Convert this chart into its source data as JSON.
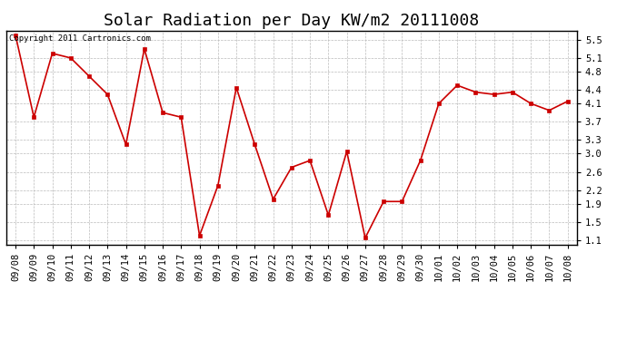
{
  "title": "Solar Radiation per Day KW/m2 20111008",
  "copyright_text": "Copyright 2011 Cartronics.com",
  "dates": [
    "09/08",
    "09/09",
    "09/10",
    "09/11",
    "09/12",
    "09/13",
    "09/14",
    "09/15",
    "09/16",
    "09/17",
    "09/18",
    "09/19",
    "09/20",
    "09/21",
    "09/22",
    "09/23",
    "09/24",
    "09/25",
    "09/26",
    "09/27",
    "09/28",
    "09/29",
    "09/30",
    "10/01",
    "10/02",
    "10/03",
    "10/04",
    "10/05",
    "10/06",
    "10/07",
    "10/08"
  ],
  "values": [
    5.6,
    3.8,
    5.2,
    5.1,
    4.7,
    4.3,
    3.2,
    5.3,
    3.9,
    3.8,
    1.2,
    2.3,
    4.45,
    3.2,
    2.0,
    2.7,
    2.85,
    1.65,
    3.05,
    1.15,
    1.95,
    1.95,
    2.85,
    4.1,
    4.5,
    4.35,
    4.3,
    4.35,
    4.1,
    3.95,
    4.15
  ],
  "line_color": "#cc0000",
  "marker_color": "#cc0000",
  "bg_color": "#ffffff",
  "grid_color": "#bbbbbb",
  "ylim": [
    1.0,
    5.7
  ],
  "yticks": [
    1.1,
    1.5,
    1.9,
    2.2,
    2.6,
    3.0,
    3.3,
    3.7,
    4.1,
    4.4,
    4.8,
    5.1,
    5.5
  ],
  "title_fontsize": 13,
  "tick_fontsize": 7.5,
  "copyright_fontsize": 6.5
}
